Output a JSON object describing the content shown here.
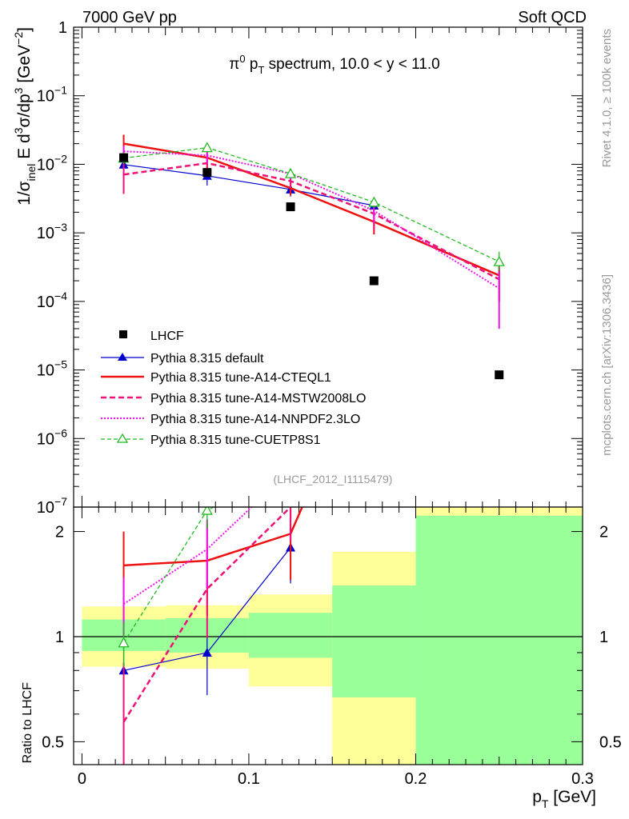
{
  "header": {
    "left": "7000 GeV pp",
    "right": "Soft QCD"
  },
  "side_labels": {
    "rivet": "Rivet 4.1.0, ≥ 100k events",
    "mcplots": "mcplots.cern.ch [arXiv:1306.3436]"
  },
  "colors": {
    "data": "#000000",
    "default": "#0000cc",
    "cteql1": "#ee1111",
    "mstw": "#ee1177",
    "nnpdf": "#ee11ee",
    "cuetp8s1": "#22bb22",
    "band_inner": "#99ff99",
    "band_outer": "#ffff99",
    "watermark": "#999999"
  },
  "chart_data": [
    {
      "type": "line",
      "title": "π0 pT spectrum, 10.0 < y < 11.0",
      "title_parts": {
        "pi": "π",
        "zero": "0",
        "p": "p",
        "T": "T",
        "rest": " spectrum, 10.0 < y < 11.0"
      },
      "ylabel": "1/σinel E d3σ/dp3 [GeV−2]",
      "ylabel_parts": {
        "a": "1/σ",
        "inel": "inel",
        "b": " E d",
        "c3": "3",
        "d": "σ/dp",
        "e3": "3",
        "f": " [GeV",
        "gm2": "−2",
        "g": "]"
      },
      "yscale": "log",
      "ylim": [
        1e-07,
        1
      ],
      "xlim": [
        -0.005,
        0.3
      ],
      "ytick_labels": [
        {
          "v": 1,
          "m": "1",
          "e": ""
        },
        {
          "v": 0.1,
          "m": "10",
          "e": "−1"
        },
        {
          "v": 0.01,
          "m": "10",
          "e": "−2"
        },
        {
          "v": 0.001,
          "m": "10",
          "e": "−3"
        },
        {
          "v": 0.0001,
          "m": "10",
          "e": "−4"
        },
        {
          "v": 1e-05,
          "m": "10",
          "e": "−5"
        },
        {
          "v": 1e-06,
          "m": "10",
          "e": "−6"
        },
        {
          "v": 1e-07,
          "m": "10",
          "e": "−7"
        }
      ],
      "watermark": "(LHCF_2012_I1115479)",
      "legend_position": "bottom-left",
      "data": {
        "name": "LHCF",
        "x": [
          0.025,
          0.075,
          0.125,
          0.175,
          0.25
        ],
        "y": [
          0.0125,
          0.0076,
          0.0024,
          0.0002,
          8.5e-06
        ]
      },
      "series": [
        {
          "key": "default",
          "name": "Pythia 8.315 default",
          "style": "solid",
          "marker": "filled-triangle",
          "x": [
            0.025,
            0.075,
            0.125,
            0.175
          ],
          "y": [
            0.0099,
            0.0068,
            0.0043,
            0.0025
          ],
          "err": [
            [
              0.0085,
              0.0117
            ],
            [
              0.0049,
              0.0085
            ],
            [
              0.0034,
              0.0052
            ],
            [
              0.0019,
              0.0031
            ]
          ]
        },
        {
          "key": "cteql1",
          "name": "Pythia 8.315 tune-A14-CTEQL1",
          "style": "solid-thick",
          "marker": "none",
          "x": [
            0.025,
            0.075,
            0.125,
            0.175,
            0.25
          ],
          "y": [
            0.02,
            0.0125,
            0.0045,
            0.00145,
            0.00024
          ],
          "err": [
            [
              0.0135,
              0.027
            ],
            [
              0.0088,
              0.0165
            ],
            [
              0.0035,
              0.0057
            ],
            [
              0.00095,
              0.0019
            ],
            [
              0.0001,
              0.00038
            ]
          ]
        },
        {
          "key": "mstw",
          "name": "Pythia 8.315 tune-A14-MSTW2008LO",
          "style": "dashed-thick",
          "marker": "none",
          "x": [
            0.025,
            0.075,
            0.125,
            0.175,
            0.25
          ],
          "y": [
            0.0071,
            0.0104,
            0.0057,
            0.0019,
            0.00021
          ],
          "err": [
            [
              0.0037,
              0.0105
            ],
            [
              0.0075,
              0.0135
            ],
            [
              0.0045,
              0.0069
            ],
            [
              0.0011,
              0.0028
            ],
            [
              0.0001,
              0.00032
            ]
          ]
        },
        {
          "key": "nnpdf",
          "name": "Pythia 8.315 tune-A14-NNPDF2.3LO",
          "style": "dotted",
          "marker": "none",
          "x": [
            0.025,
            0.075,
            0.125,
            0.175,
            0.25
          ],
          "y": [
            0.0155,
            0.0135,
            0.0073,
            0.0021,
            0.000155
          ],
          "err": [
            [
              0.0125,
              0.0185
            ],
            [
              0.0105,
              0.0165
            ],
            [
              0.0061,
              0.0085
            ],
            [
              0.0014,
              0.0029
            ],
            [
              4e-05,
              0.00027
            ]
          ]
        },
        {
          "key": "cuetp8s1",
          "name": "Pythia 8.315 tune-CUETP8S1",
          "style": "dashed",
          "marker": "open-triangle",
          "x": [
            0.025,
            0.075,
            0.125,
            0.175,
            0.25
          ],
          "y": [
            0.0123,
            0.0175,
            0.0073,
            0.0028,
            0.00038
          ],
          "err": [
            [
              0.0103,
              0.0143
            ],
            [
              0.0155,
              0.0195
            ],
            [
              0.0063,
              0.0083
            ],
            [
              0.0023,
              0.0033
            ],
            [
              0.00028,
              0.00053
            ]
          ]
        }
      ]
    },
    {
      "type": "line",
      "title": "",
      "ylabel": "Ratio to LHCF",
      "xlabel": "pT [GeV]",
      "xlabel_parts": {
        "p": "p",
        "T": "T",
        "rest": " [GeV]"
      },
      "yscale": "log",
      "ylim": [
        0.43,
        2.35
      ],
      "xlim": [
        -0.005,
        0.3
      ],
      "xtick_labels": [
        {
          "v": 0,
          "t": "0"
        },
        {
          "v": 0.1,
          "t": "0.1"
        },
        {
          "v": 0.2,
          "t": "0.2"
        },
        {
          "v": 0.3,
          "t": "0.3"
        }
      ],
      "ytick_labels": [
        {
          "v": 0.5,
          "t": "0.5"
        },
        {
          "v": 1,
          "t": "1"
        },
        {
          "v": 2,
          "t": "2"
        }
      ],
      "bands": [
        {
          "xlo": 0.0,
          "xhi": 0.05,
          "inner": [
            0.91,
            1.12
          ],
          "outer": [
            0.82,
            1.22
          ]
        },
        {
          "xlo": 0.05,
          "xhi": 0.1,
          "inner": [
            0.9,
            1.13
          ],
          "outer": [
            0.81,
            1.23
          ]
        },
        {
          "xlo": 0.1,
          "xhi": 0.15,
          "inner": [
            0.87,
            1.17
          ],
          "outer": [
            0.72,
            1.32
          ]
        },
        {
          "xlo": 0.15,
          "xhi": 0.2,
          "inner": [
            0.67,
            1.4
          ],
          "outer": [
            0.43,
            1.75
          ]
        },
        {
          "xlo": 0.2,
          "xhi": 0.3,
          "inner": [
            0.43,
            2.22
          ],
          "outer": [
            0.43,
            2.35
          ]
        }
      ],
      "series": [
        {
          "key": "default",
          "x": [
            0.025,
            0.075,
            0.125
          ],
          "y": [
            0.8,
            0.9,
            1.8
          ],
          "err": [
            [
              0.68,
              0.93
            ],
            [
              0.68,
              1.14
            ],
            [
              1.42,
              2.17
            ]
          ]
        },
        {
          "key": "cteql1",
          "x": [
            0.025,
            0.075,
            0.125,
            0.175
          ],
          "y": [
            1.6,
            1.65,
            1.97,
            7.0
          ],
          "err": [
            [
              1.08,
              2.0
            ],
            [
              1.15,
              2.15
            ],
            [
              1.45,
              2.4
            ],
            null
          ]
        },
        {
          "key": "mstw",
          "x": [
            0.025,
            0.075,
            0.125,
            0.175
          ],
          "y": [
            0.57,
            1.37,
            2.35,
            9.0
          ],
          "err": [
            [
              0.3,
              0.84
            ],
            [
              0.99,
              1.78
            ],
            [
              1.88,
              2.9
            ],
            null
          ]
        },
        {
          "key": "nnpdf",
          "x": [
            0.025,
            0.075,
            0.125
          ],
          "y": [
            1.24,
            1.78,
            3.0
          ],
          "err": [
            [
              1.0,
              1.48
            ],
            [
              1.38,
              2.17
            ],
            null
          ]
        },
        {
          "key": "cuetp8s1",
          "x": [
            0.025,
            0.075,
            0.125
          ],
          "y": [
            0.96,
            2.3,
            3.0
          ],
          "err": [
            [
              0.82,
              1.1
            ],
            [
              2.04,
              2.57
            ],
            null
          ]
        }
      ]
    }
  ]
}
